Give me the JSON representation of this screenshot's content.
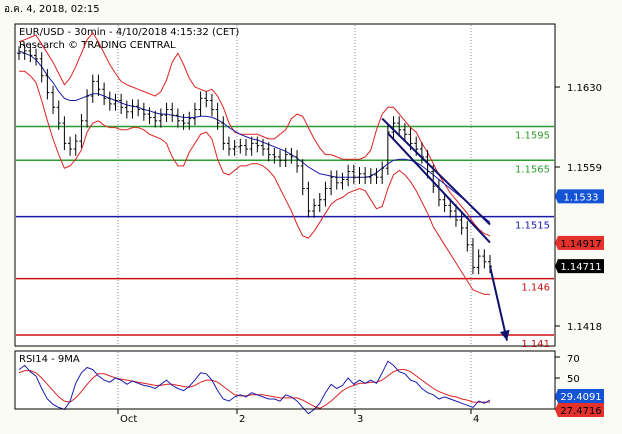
{
  "header": {
    "date_label": "อ.ค. 4, 2018, 02:15"
  },
  "chart_data": {
    "type": "line",
    "title": "EUR/USD - 30min - 4/10/2018 4:15:32 (CET)",
    "subtitle": "Research © TRADING CENTRAL",
    "x_ticks": [
      "Oct",
      "2",
      "3",
      "4"
    ],
    "price_ylim": [
      1.1385,
      1.169
    ],
    "price_ticks": [
      "1.1630",
      "1.1559",
      "1.1418"
    ],
    "levels": [
      {
        "label": "1.1595",
        "value": 1.1595,
        "color": "#2e9b2e"
      },
      {
        "label": "1.1565",
        "value": 1.1565,
        "color": "#2e9b2e"
      },
      {
        "label": "1.1515",
        "value": 1.1515,
        "color": "#1a1aa8"
      },
      {
        "label": "1.146",
        "value": 1.146,
        "color": "#cc1010"
      },
      {
        "label": "1.141",
        "value": 1.141,
        "color": "#cc1010"
      }
    ],
    "price_badges": [
      {
        "label": "1.1533",
        "value": 1.1533,
        "bg": "#1453d6",
        "fg": "#ffffff"
      },
      {
        "label": "1.14917",
        "value": 1.14917,
        "bg": "#e4312b",
        "fg": "#000000"
      },
      {
        "label": "1.14711",
        "value": 1.14711,
        "bg": "#000000",
        "fg": "#ffffff"
      }
    ],
    "close": [
      1.166,
      1.1662,
      1.1658,
      1.1655,
      1.164,
      1.1625,
      1.1612,
      1.1598,
      1.158,
      1.1575,
      1.1582,
      1.16,
      1.1622,
      1.1635,
      1.1628,
      1.162,
      1.1615,
      1.1618,
      1.1612,
      1.1608,
      1.1613,
      1.161,
      1.1606,
      1.1603,
      1.16,
      1.1605,
      1.161,
      1.1605,
      1.16,
      1.1598,
      1.1602,
      1.161,
      1.162,
      1.1618,
      1.161,
      1.1598,
      1.158,
      1.1575,
      1.1577,
      1.1578,
      1.1575,
      1.158,
      1.1578,
      1.1575,
      1.157,
      1.1568,
      1.1565,
      1.157,
      1.1568,
      1.156,
      1.154,
      1.152,
      1.1525,
      1.153,
      1.154,
      1.155,
      1.1545,
      1.1548,
      1.1555,
      1.155,
      1.1553,
      1.155,
      1.1552,
      1.155,
      1.1558,
      1.159,
      1.1598,
      1.1592,
      1.1588,
      1.158,
      1.1575,
      1.1568,
      1.1555,
      1.1542,
      1.153,
      1.1525,
      1.152,
      1.1512,
      1.1505,
      1.149,
      1.147,
      1.148,
      1.1475,
      1.1471
    ],
    "bb_upper": [
      1.167,
      1.1672,
      1.1674,
      1.1676,
      1.1668,
      1.166,
      1.1652,
      1.1642,
      1.1632,
      1.1638,
      1.1648,
      1.166,
      1.1672,
      1.1678,
      1.167,
      1.166,
      1.165,
      1.1642,
      1.1635,
      1.1632,
      1.163,
      1.1628,
      1.1626,
      1.1624,
      1.1622,
      1.1626,
      1.1636,
      1.1652,
      1.166,
      1.165,
      1.1638,
      1.163,
      1.1628,
      1.1626,
      1.1628,
      1.1622,
      1.1612,
      1.1598,
      1.159,
      1.1588,
      1.1588,
      1.1588,
      1.1588,
      1.1586,
      1.1584,
      1.1584,
      1.1588,
      1.1592,
      1.1602,
      1.1606,
      1.1604,
      1.1594,
      1.1584,
      1.1576,
      1.157,
      1.157,
      1.1568,
      1.1566,
      1.1566,
      1.1566,
      1.1566,
      1.1568,
      1.1574,
      1.1592,
      1.1606,
      1.1612,
      1.1612,
      1.1606,
      1.16,
      1.1594,
      1.159,
      1.158,
      1.1572,
      1.1562,
      1.1552,
      1.1544,
      1.1536,
      1.153,
      1.1524,
      1.1518,
      1.151,
      1.1504,
      1.15,
      1.1498
    ],
    "bb_lower": [
      1.1644,
      1.1644,
      1.164,
      1.1634,
      1.1618,
      1.16,
      1.1584,
      1.157,
      1.1558,
      1.156,
      1.1566,
      1.1574,
      1.159,
      1.1598,
      1.16,
      1.1596,
      1.1594,
      1.1594,
      1.1592,
      1.1592,
      1.1594,
      1.1594,
      1.1592,
      1.1588,
      1.1586,
      1.1584,
      1.158,
      1.1568,
      1.156,
      1.156,
      1.1572,
      1.158,
      1.1588,
      1.159,
      1.1584,
      1.1566,
      1.1554,
      1.1552,
      1.1556,
      1.156,
      1.156,
      1.1562,
      1.1562,
      1.156,
      1.1556,
      1.155,
      1.154,
      1.153,
      1.152,
      1.1508,
      1.1498,
      1.1496,
      1.1502,
      1.151,
      1.1518,
      1.1526,
      1.153,
      1.1532,
      1.1536,
      1.1538,
      1.154,
      1.1538,
      1.153,
      1.1522,
      1.1524,
      1.154,
      1.1552,
      1.1556,
      1.1552,
      1.1546,
      1.1538,
      1.1528,
      1.1518,
      1.1506,
      1.1498,
      1.149,
      1.1482,
      1.1474,
      1.1466,
      1.1458,
      1.145,
      1.1448,
      1.1446,
      1.1446
    ],
    "ma": [
      1.1662,
      1.166,
      1.1658,
      1.1654,
      1.1648,
      1.164,
      1.1634,
      1.1626,
      1.162,
      1.1618,
      1.1618,
      1.162,
      1.1622,
      1.1624,
      1.1624,
      1.1622,
      1.162,
      1.1618,
      1.1616,
      1.1614,
      1.1613,
      1.1612,
      1.161,
      1.1609,
      1.1607,
      1.1606,
      1.1606,
      1.1605,
      1.1604,
      1.1603,
      1.1603,
      1.1603,
      1.1604,
      1.1604,
      1.1603,
      1.1601,
      1.1598,
      1.1594,
      1.1591,
      1.1588,
      1.1586,
      1.1584,
      1.1583,
      1.1581,
      1.1579,
      1.1577,
      1.1575,
      1.1573,
      1.157,
      1.1567,
      1.1563,
      1.1559,
      1.1556,
      1.1553,
      1.1552,
      1.1551,
      1.155,
      1.155,
      1.155,
      1.155,
      1.155,
      1.155,
      1.1551,
      1.1554,
      1.1558,
      1.1562,
      1.1565,
      1.1566,
      1.1566,
      1.1565,
      1.1563,
      1.156,
      1.1556,
      1.1552,
      1.1548,
      1.1544,
      1.154,
      1.1536,
      1.1532,
      1.1528,
      1.1522,
      1.1518,
      1.1514,
      1.151
    ],
    "channel": [
      {
        "from": [
          64,
          1.1602
        ],
        "to": [
          83,
          1.1508
        ]
      },
      {
        "from": [
          65,
          1.1589
        ],
        "to": [
          83,
          1.1492
        ]
      }
    ],
    "projection": {
      "from": [
        83,
        1.1471
      ],
      "to": [
        86,
        1.1405
      ]
    },
    "rsi": {
      "label": "RSI14 - 9MA",
      "ylim": [
        10,
        90
      ],
      "ticks": [
        "70",
        "50",
        "30"
      ],
      "badges": [
        {
          "label": "29.4091",
          "value": 29.4091,
          "bg": "#1453d6",
          "fg": "#ffffff"
        },
        {
          "label": "27.4716",
          "value": 27.4716,
          "bg": "#e4312b",
          "fg": "#000000"
        }
      ],
      "rsi_values": [
        58,
        62,
        56,
        52,
        40,
        30,
        25,
        22,
        20,
        28,
        45,
        55,
        60,
        58,
        52,
        48,
        46,
        50,
        48,
        44,
        47,
        45,
        43,
        42,
        40,
        44,
        48,
        43,
        40,
        38,
        42,
        48,
        55,
        54,
        48,
        38,
        30,
        28,
        32,
        34,
        32,
        36,
        34,
        32,
        30,
        30,
        28,
        34,
        32,
        28,
        22,
        16,
        20,
        26,
        36,
        44,
        40,
        43,
        50,
        44,
        48,
        45,
        48,
        45,
        55,
        66,
        62,
        56,
        54,
        48,
        46,
        40,
        36,
        34,
        30,
        32,
        30,
        28,
        26,
        24,
        22,
        28,
        26,
        29
      ],
      "ma_values": [
        55,
        57,
        57,
        55,
        50,
        44,
        38,
        32,
        28,
        27,
        31,
        37,
        44,
        50,
        54,
        54,
        52,
        50,
        49,
        48,
        47,
        46,
        45,
        44,
        43,
        43,
        44,
        44,
        43,
        42,
        41,
        43,
        46,
        48,
        48,
        46,
        42,
        38,
        34,
        33,
        33,
        34,
        34,
        34,
        33,
        32,
        31,
        31,
        31,
        31,
        29,
        26,
        23,
        21,
        24,
        28,
        33,
        38,
        41,
        43,
        45,
        45,
        46,
        46,
        48,
        52,
        56,
        58,
        58,
        56,
        52,
        48,
        44,
        40,
        37,
        35,
        33,
        32,
        30,
        29,
        27,
        27,
        27,
        27
      ]
    }
  }
}
